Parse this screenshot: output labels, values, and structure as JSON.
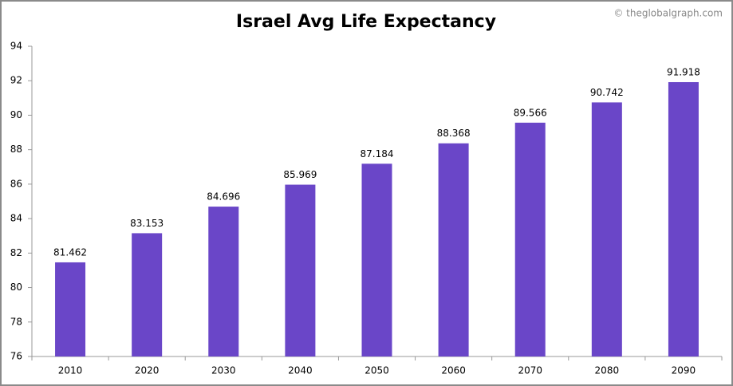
{
  "chart_data": {
    "type": "bar",
    "title": "Israel Avg Life Expectancy",
    "watermark": "© theglobalgraph.com",
    "categories": [
      "2010",
      "2020",
      "2030",
      "2040",
      "2050",
      "2060",
      "2070",
      "2080",
      "2090"
    ],
    "values": [
      81.462,
      83.153,
      84.696,
      85.969,
      87.184,
      88.368,
      89.566,
      90.742,
      91.918
    ],
    "color": "#6a46c8",
    "ylim": [
      76,
      94
    ],
    "yticks": [
      76,
      78,
      80,
      82,
      84,
      86,
      88,
      90,
      92,
      94
    ],
    "grid": false
  }
}
